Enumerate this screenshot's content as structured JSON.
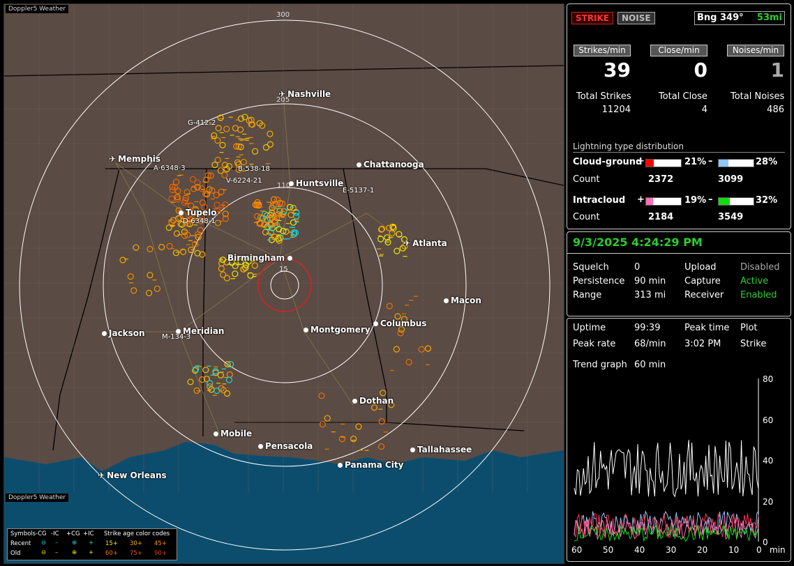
{
  "map": {
    "brand": "Doppler5 Weather",
    "cities": [
      {
        "name": "Nashville",
        "type": "airport"
      },
      {
        "name": "Chattanooga",
        "type": "city"
      },
      {
        "name": "Memphis",
        "type": "airport"
      },
      {
        "name": "Huntsville",
        "type": "city"
      },
      {
        "name": "Tupelo",
        "type": "city"
      },
      {
        "name": "Atlanta",
        "type": "airport"
      },
      {
        "name": "Birmingham",
        "type": "city"
      },
      {
        "name": "Macon",
        "type": "city"
      },
      {
        "name": "Jackson",
        "type": "city"
      },
      {
        "name": "Meridian",
        "type": "city"
      },
      {
        "name": "Montgomery",
        "type": "city"
      },
      {
        "name": "Columbus",
        "type": "city"
      },
      {
        "name": "Dothan",
        "type": "city"
      },
      {
        "name": "Mobile",
        "type": "city"
      },
      {
        "name": "Pensacola",
        "type": "city"
      },
      {
        "name": "Tallahassee",
        "type": "city"
      },
      {
        "name": "Panama City",
        "type": "airport"
      },
      {
        "name": "New Orleans",
        "type": "airport"
      }
    ],
    "storms": [
      "G-412-2",
      "A-6348-3",
      "B-538-18",
      "V-6224-21",
      "E-5137-1",
      "D-6348-1",
      "M-134-3"
    ],
    "ring_labels": [
      "300",
      "205",
      "110",
      "15"
    ],
    "legend": {
      "symbols_label": "Symbols",
      "cols": [
        "-CG",
        "-IC",
        "+CG",
        "+IC"
      ],
      "recent": "Recent",
      "old": "Old",
      "age_title": "Strike age color codes",
      "recent_ages": [
        "15+",
        "30+",
        "45+"
      ],
      "old_ages": [
        "60+",
        "75+",
        "90+"
      ]
    }
  },
  "status": {
    "strike_tab": "STRIKE",
    "noise_tab": "NOISE",
    "bearing": "Bng 349°",
    "distance": "53mi",
    "rates": [
      {
        "header": "Strikes/min",
        "value": "39",
        "total_label": "Total Strikes",
        "total": "11204"
      },
      {
        "header": "Close/min",
        "value": "0",
        "total_label": "Total Close",
        "total": "4"
      },
      {
        "header": "Noises/min",
        "value": "1",
        "total_label": "Total Noises",
        "total": "486"
      }
    ],
    "dist_title": "Lightning type distribution",
    "cloud_ground": {
      "label": "Cloud-ground",
      "pos_pct": "21%",
      "neg_pct": "28%",
      "count_label": "Count",
      "pos_count": "2372",
      "neg_count": "3099",
      "pos_frac": 0.21,
      "neg_frac": 0.28
    },
    "intracloud": {
      "label": "Intracloud",
      "pos_pct": "19%",
      "neg_pct": "32%",
      "count_label": "Count",
      "pos_count": "2184",
      "neg_count": "3549",
      "pos_frac": 0.19,
      "neg_frac": 0.32
    },
    "plus": "+",
    "minus": "–"
  },
  "settings": {
    "datetime": "9/3/2025 4:24:29 PM",
    "squelch_label": "Squelch",
    "squelch": "0",
    "upload_label": "Upload",
    "upload": "Disabled",
    "persistence_label": "Persistence",
    "persistence": "90 min",
    "capture_label": "Capture",
    "capture": "Active",
    "range_label": "Range",
    "range": "313 mi",
    "receiver_label": "Receiver",
    "receiver": "Enabled"
  },
  "trend": {
    "uptime_label": "Uptime",
    "uptime": "99:39",
    "peak_time_label": "Peak time",
    "plot_label": "Plot",
    "peak_rate_label": "Peak rate",
    "peak_rate": "68/min",
    "peak_time": "3:02 PM",
    "plot": "Strike",
    "trend_label": "Trend graph",
    "trend_window": "60 min",
    "y_ticks": [
      "80",
      "60",
      "40",
      "20",
      "0"
    ],
    "x_ticks": [
      "60",
      "50",
      "40",
      "30",
      "20",
      "10",
      "0"
    ],
    "x_unit": "min"
  },
  "colors": {
    "cg_pos": "#ff0000",
    "cg_neg": "#8fc7ff",
    "ic_pos": "#ff6fb5",
    "ic_neg": "#11dd11",
    "accent": "#2ecc2e"
  }
}
